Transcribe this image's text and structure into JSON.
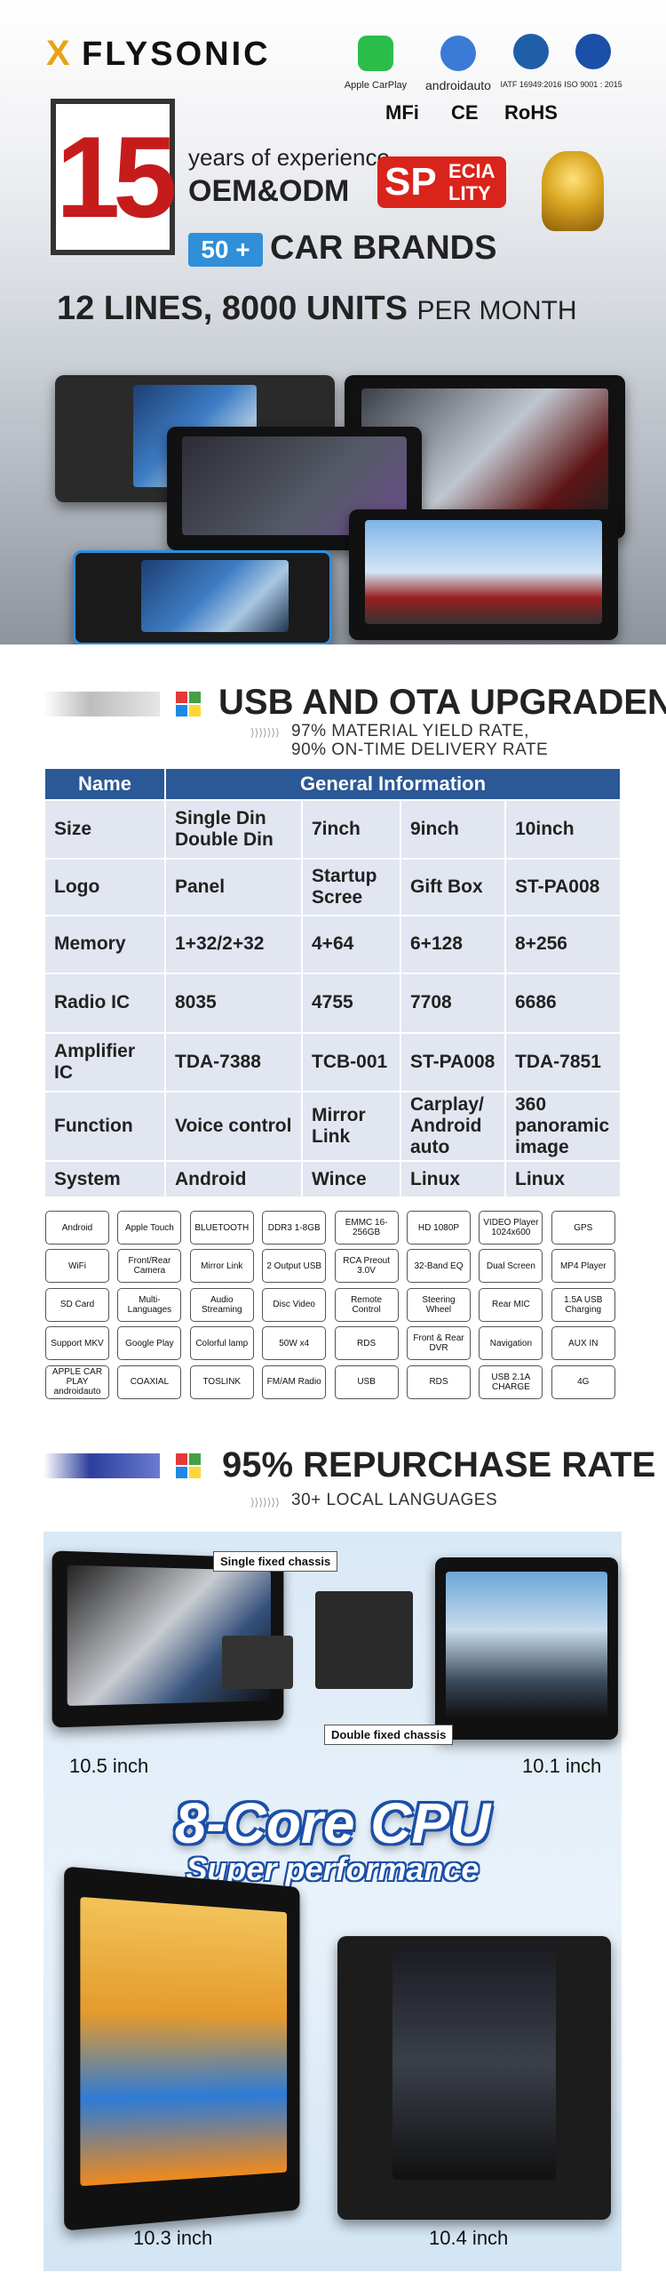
{
  "header": {
    "brand": "FLYSONIC",
    "badges": [
      "Apple CarPlay",
      "androidauto",
      "IATF 16949:2016",
      "ISO 9001 : 2015"
    ],
    "marks": [
      "MFi",
      "CE",
      "RoHS"
    ]
  },
  "hero": {
    "number": "15",
    "experience": "years of experience",
    "oem": "OEM&ODM",
    "speciality": [
      "SP",
      "ECIA",
      "LITY"
    ],
    "brands_count": "50 +",
    "brands": "CAR BRANDS",
    "capacity": "12 LINES, 8000 UNITS",
    "capacity_suffix": "PER MONTH"
  },
  "section1": {
    "title": "USB AND OTA UPGRADEN",
    "subtitle": [
      "97% MATERIAL YIELD RATE,",
      "90% ON-TIME DELIVERY RATE"
    ]
  },
  "table": {
    "headers": [
      "Name",
      "General Information"
    ],
    "rows": [
      [
        "Size",
        "Single Din Double Din",
        "7inch",
        "9inch",
        "10inch"
      ],
      [
        "Logo",
        "Panel",
        "Startup Scree",
        "Gift Box",
        "ST-PA008"
      ],
      [
        "Memory",
        "1+32/2+32",
        "4+64",
        "6+128",
        "8+256"
      ],
      [
        "Radio IC",
        "8035",
        "4755",
        "7708",
        "6686"
      ],
      [
        "Amplifier IC",
        "TDA-7388",
        "TCB-001",
        "ST-PA008",
        "TDA-7851"
      ],
      [
        "Function",
        "Voice control",
        "Mirror Link",
        "Carplay/ Android auto",
        "360 panoramic image"
      ],
      [
        "System",
        "Android",
        "Wince",
        "Linux",
        "Linux"
      ]
    ]
  },
  "features": [
    [
      "Android",
      "Apple Touch",
      "BLUETOOTH",
      "DDR3 1-8GB",
      "EMMC 16-256GB",
      "HD 1080P",
      "VIDEO Player 1024x600",
      "GPS"
    ],
    [
      "WiFi",
      "Front/Rear Camera",
      "Mirror Link",
      "2 Output USB",
      "RCA Preout 3.0V",
      "32-Band EQ",
      "Dual Screen",
      "MP4 Player"
    ],
    [
      "SD Card",
      "Multi-Languages",
      "Audio Streaming",
      "Disc Video",
      "Remote Control",
      "Steering Wheel",
      "Rear MIC",
      "1.5A USB Charging"
    ],
    [
      "Support MKV",
      "Google Play",
      "Colorful lamp",
      "50W x4",
      "RDS",
      "Front & Rear DVR",
      "Navigation",
      "AUX IN"
    ],
    [
      "APPLE CAR PLAY androidauto",
      "COAXIAL",
      "TOSLINK",
      "FM/AM Radio",
      "USB",
      "RDS",
      "USB 2.1A CHARGE",
      "4G"
    ]
  ],
  "section2": {
    "title": "95% REPURCHASE RATE",
    "subtitle": "30+ LOCAL LANGUAGES",
    "callouts": [
      "Single fixed chassis",
      "Double fixed chassis"
    ],
    "cpu_title": "8-Core CPU",
    "cpu_subtitle": "Super performance",
    "products": [
      "10.5 inch",
      "10.1 inch",
      "10.3 inch",
      "10.4 inch"
    ]
  }
}
